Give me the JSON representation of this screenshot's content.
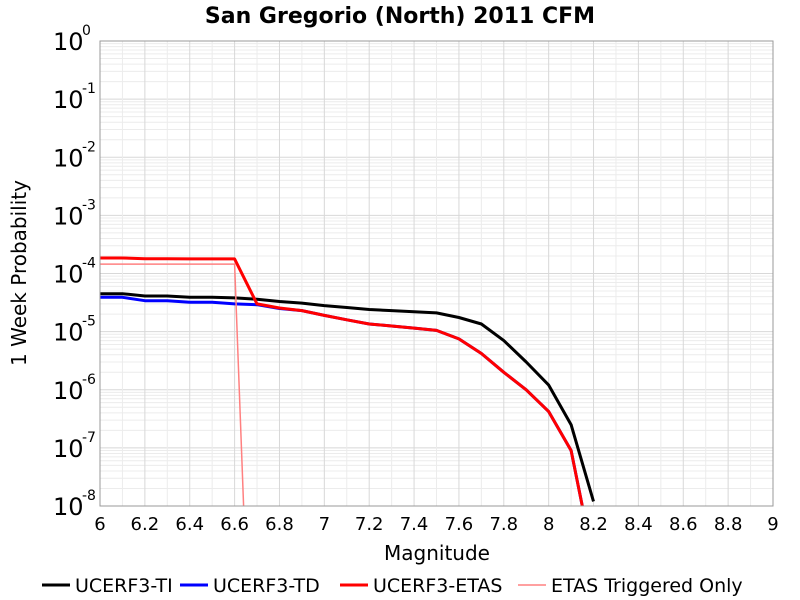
{
  "chart_data": {
    "type": "line",
    "title": "San Gregorio (North) 2011 CFM",
    "xlabel": "Magnitude",
    "ylabel": "1 Week Probability",
    "xlim": [
      6,
      9
    ],
    "ylim": [
      1e-08,
      1
    ],
    "yscale": "log",
    "grid": true,
    "legend_placement": "bottom",
    "x_ticks": [
      "6",
      "6.2",
      "6.4",
      "6.6",
      "6.8",
      "7",
      "7.2",
      "7.4",
      "7.6",
      "7.8",
      "8",
      "8.2",
      "8.4",
      "8.6",
      "8.8",
      "9"
    ],
    "y_ticks": [
      {
        "base": "10",
        "exp": "0"
      },
      {
        "base": "10",
        "exp": "-1"
      },
      {
        "base": "10",
        "exp": "-2"
      },
      {
        "base": "10",
        "exp": "-3"
      },
      {
        "base": "10",
        "exp": "-4"
      },
      {
        "base": "10",
        "exp": "-5"
      },
      {
        "base": "10",
        "exp": "-6"
      },
      {
        "base": "10",
        "exp": "-7"
      },
      {
        "base": "10",
        "exp": "-8"
      }
    ],
    "series": [
      {
        "name": "UCERF3-TI",
        "color": "#000000",
        "x": [
          6.0,
          6.1,
          6.2,
          6.3,
          6.4,
          6.5,
          6.6,
          6.7,
          6.8,
          6.9,
          7.0,
          7.1,
          7.2,
          7.3,
          7.4,
          7.5,
          7.6,
          7.7,
          7.8,
          7.9,
          8.0,
          8.1,
          8.2
        ],
        "y": [
          4.5e-05,
          4.5e-05,
          4.1e-05,
          4.1e-05,
          3.9e-05,
          3.9e-05,
          3.8e-05,
          3.6e-05,
          3.3e-05,
          3.1e-05,
          2.8e-05,
          2.6e-05,
          2.4e-05,
          2.3e-05,
          2.2e-05,
          2.1e-05,
          1.75e-05,
          1.35e-05,
          7e-06,
          3e-06,
          1.2e-06,
          2.5e-07,
          1.2e-08
        ]
      },
      {
        "name": "UCERF3-TD",
        "color": "#0000ff",
        "x": [
          6.0,
          6.1,
          6.2,
          6.3,
          6.4,
          6.5,
          6.6,
          6.7,
          6.8,
          6.9,
          7.0,
          7.1,
          7.2,
          7.3,
          7.4,
          7.5,
          7.6,
          7.7,
          7.8,
          7.9,
          8.0,
          8.1,
          8.15
        ],
        "y": [
          3.9e-05,
          3.9e-05,
          3.4e-05,
          3.4e-05,
          3.2e-05,
          3.2e-05,
          3e-05,
          2.9e-05,
          2.5e-05,
          2.3e-05,
          1.9e-05,
          1.6e-05,
          1.35e-05,
          1.25e-05,
          1.15e-05,
          1.05e-05,
          7.5e-06,
          4.2e-06,
          2e-06,
          1e-06,
          4.2e-07,
          9e-08,
          1e-08
        ]
      },
      {
        "name": "UCERF3-ETAS",
        "color": "#ff0000",
        "x": [
          6.0,
          6.1,
          6.2,
          6.3,
          6.4,
          6.5,
          6.6,
          6.7,
          6.8,
          6.9,
          7.0,
          7.1,
          7.2,
          7.3,
          7.4,
          7.5,
          7.6,
          7.7,
          7.8,
          7.9,
          8.0,
          8.1,
          8.15
        ],
        "y": [
          0.000185,
          0.000185,
          0.00018,
          0.00018,
          0.000178,
          0.000178,
          0.000178,
          3e-05,
          2.55e-05,
          2.3e-05,
          1.9e-05,
          1.6e-05,
          1.35e-05,
          1.25e-05,
          1.15e-05,
          1.05e-05,
          7.5e-06,
          4.2e-06,
          2e-06,
          1e-06,
          4.2e-07,
          9e-08,
          1e-08
        ]
      },
      {
        "name": "ETAS Triggered Only",
        "color": "#ff8080",
        "x": [
          6.0,
          6.1,
          6.2,
          6.3,
          6.4,
          6.5,
          6.6,
          6.64
        ],
        "y": [
          0.000145,
          0.000145,
          0.000145,
          0.000145,
          0.000145,
          0.000145,
          0.000145,
          1e-08
        ]
      }
    ]
  }
}
